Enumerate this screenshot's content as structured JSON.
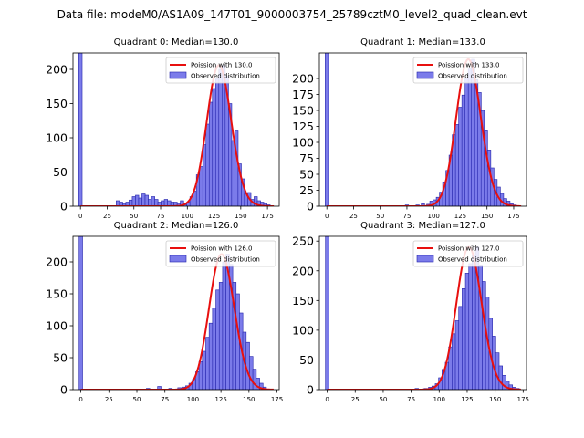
{
  "figure": {
    "suptitle": "Data file: modeM0/AS1A09_147T01_9000003754_25789cztM0_level2_quad_clean.evt"
  },
  "colors": {
    "bar_fill": "#7b7bea",
    "bar_edge": "#2222aa",
    "fit_line": "#e8100f",
    "legend_border": "#cccccc"
  },
  "chart_data": [
    {
      "type": "bar",
      "title": "Quadrant 0: Median=130.0",
      "xlim": [
        -7,
        186
      ],
      "ylim": [
        0,
        224
      ],
      "xticks": [
        0,
        25,
        50,
        75,
        100,
        125,
        150,
        175
      ],
      "yticks": [
        0,
        50,
        100,
        150,
        200
      ],
      "bin_width": 3.1,
      "legend": [
        "Poission with 130.0",
        "Observed distribution"
      ],
      "zero_bar": 224,
      "peak_center": 130,
      "hist": {
        "x": [
          35,
          38,
          41,
          44,
          47,
          50,
          53,
          56,
          59,
          62,
          65,
          68,
          71,
          74,
          77,
          80,
          83,
          86,
          89,
          92,
          95,
          98,
          101,
          104,
          107,
          110,
          113,
          116,
          119,
          122,
          125,
          128,
          131,
          134,
          137,
          140,
          143,
          146,
          149,
          152,
          155,
          158,
          161,
          164,
          167,
          170,
          173,
          176
        ],
        "v": [
          8,
          6,
          4,
          6,
          9,
          14,
          16,
          12,
          18,
          16,
          10,
          14,
          10,
          6,
          8,
          10,
          8,
          6,
          6,
          4,
          8,
          2,
          6,
          14,
          22,
          46,
          58,
          90,
          120,
          152,
          172,
          186,
          200,
          206,
          190,
          150,
          96,
          110,
          62,
          40,
          18,
          20,
          10,
          14,
          8,
          6,
          4,
          2
        ]
      }
    },
    {
      "type": "bar",
      "title": "Quadrant 1: Median=133.0",
      "xlim": [
        -7,
        187
      ],
      "ylim": [
        0,
        240
      ],
      "xticks": [
        0,
        25,
        50,
        75,
        100,
        125,
        150,
        175
      ],
      "yticks": [
        0,
        25,
        50,
        75,
        100,
        125,
        150,
        175,
        200
      ],
      "bin_width": 3.1,
      "legend": [
        "Poission with 133.0",
        "Observed distribution"
      ],
      "zero_bar": 240,
      "peak_center": 133,
      "hist": {
        "x": [
          60,
          65,
          70,
          75,
          80,
          85,
          90,
          95,
          98,
          101,
          104,
          107,
          110,
          113,
          116,
          119,
          122,
          125,
          128,
          131,
          134,
          137,
          140,
          143,
          146,
          149,
          152,
          155,
          158,
          161,
          164,
          167,
          170,
          173,
          176
        ],
        "v": [
          1,
          1,
          1,
          2,
          1,
          2,
          4,
          3,
          8,
          10,
          14,
          22,
          38,
          56,
          80,
          112,
          128,
          155,
          174,
          200,
          215,
          230,
          198,
          178,
          150,
          118,
          88,
          60,
          42,
          30,
          20,
          12,
          8,
          4,
          2
        ]
      }
    },
    {
      "type": "bar",
      "title": "Quadrant 2: Median=126.0",
      "xlim": [
        -7,
        177
      ],
      "ylim": [
        0,
        240
      ],
      "xticks": [
        0,
        25,
        50,
        75,
        100,
        125,
        150,
        175
      ],
      "yticks": [
        0,
        50,
        100,
        150,
        200
      ],
      "bin_width": 3.1,
      "legend": [
        "Poission with 126.0",
        "Observed distribution"
      ],
      "zero_bar": 240,
      "peak_center": 126,
      "hist": {
        "x": [
          50,
          60,
          70,
          80,
          88,
          92,
          95,
          98,
          101,
          104,
          107,
          110,
          113,
          116,
          119,
          122,
          125,
          128,
          131,
          134,
          137,
          140,
          143,
          146,
          149,
          152,
          155,
          158,
          161,
          164
        ],
        "v": [
          1,
          2,
          5,
          2,
          3,
          4,
          6,
          10,
          16,
          28,
          44,
          60,
          82,
          104,
          128,
          156,
          168,
          200,
          212,
          196,
          168,
          150,
          120,
          90,
          74,
          52,
          32,
          18,
          10,
          4
        ]
      }
    },
    {
      "type": "bar",
      "title": "Quadrant 3: Median=127.0",
      "xlim": [
        -7,
        178
      ],
      "ylim": [
        0,
        258
      ],
      "xticks": [
        0,
        25,
        50,
        75,
        100,
        125,
        150,
        175
      ],
      "yticks": [
        0,
        50,
        100,
        150,
        200,
        250
      ],
      "bin_width": 3.1,
      "legend": [
        "Poission with 127.0",
        "Observed distribution"
      ],
      "zero_bar": 258,
      "peak_center": 127,
      "hist": {
        "x": [
          70,
          80,
          88,
          92,
          95,
          98,
          101,
          104,
          107,
          110,
          113,
          116,
          119,
          122,
          125,
          128,
          131,
          134,
          137,
          140,
          143,
          146,
          149,
          152,
          155,
          158,
          161,
          164,
          167,
          170
        ],
        "v": [
          1,
          2,
          2,
          4,
          6,
          10,
          20,
          34,
          46,
          72,
          94,
          116,
          140,
          170,
          196,
          212,
          226,
          240,
          210,
          182,
          156,
          120,
          90,
          62,
          40,
          24,
          14,
          8,
          4,
          2
        ]
      }
    }
  ]
}
